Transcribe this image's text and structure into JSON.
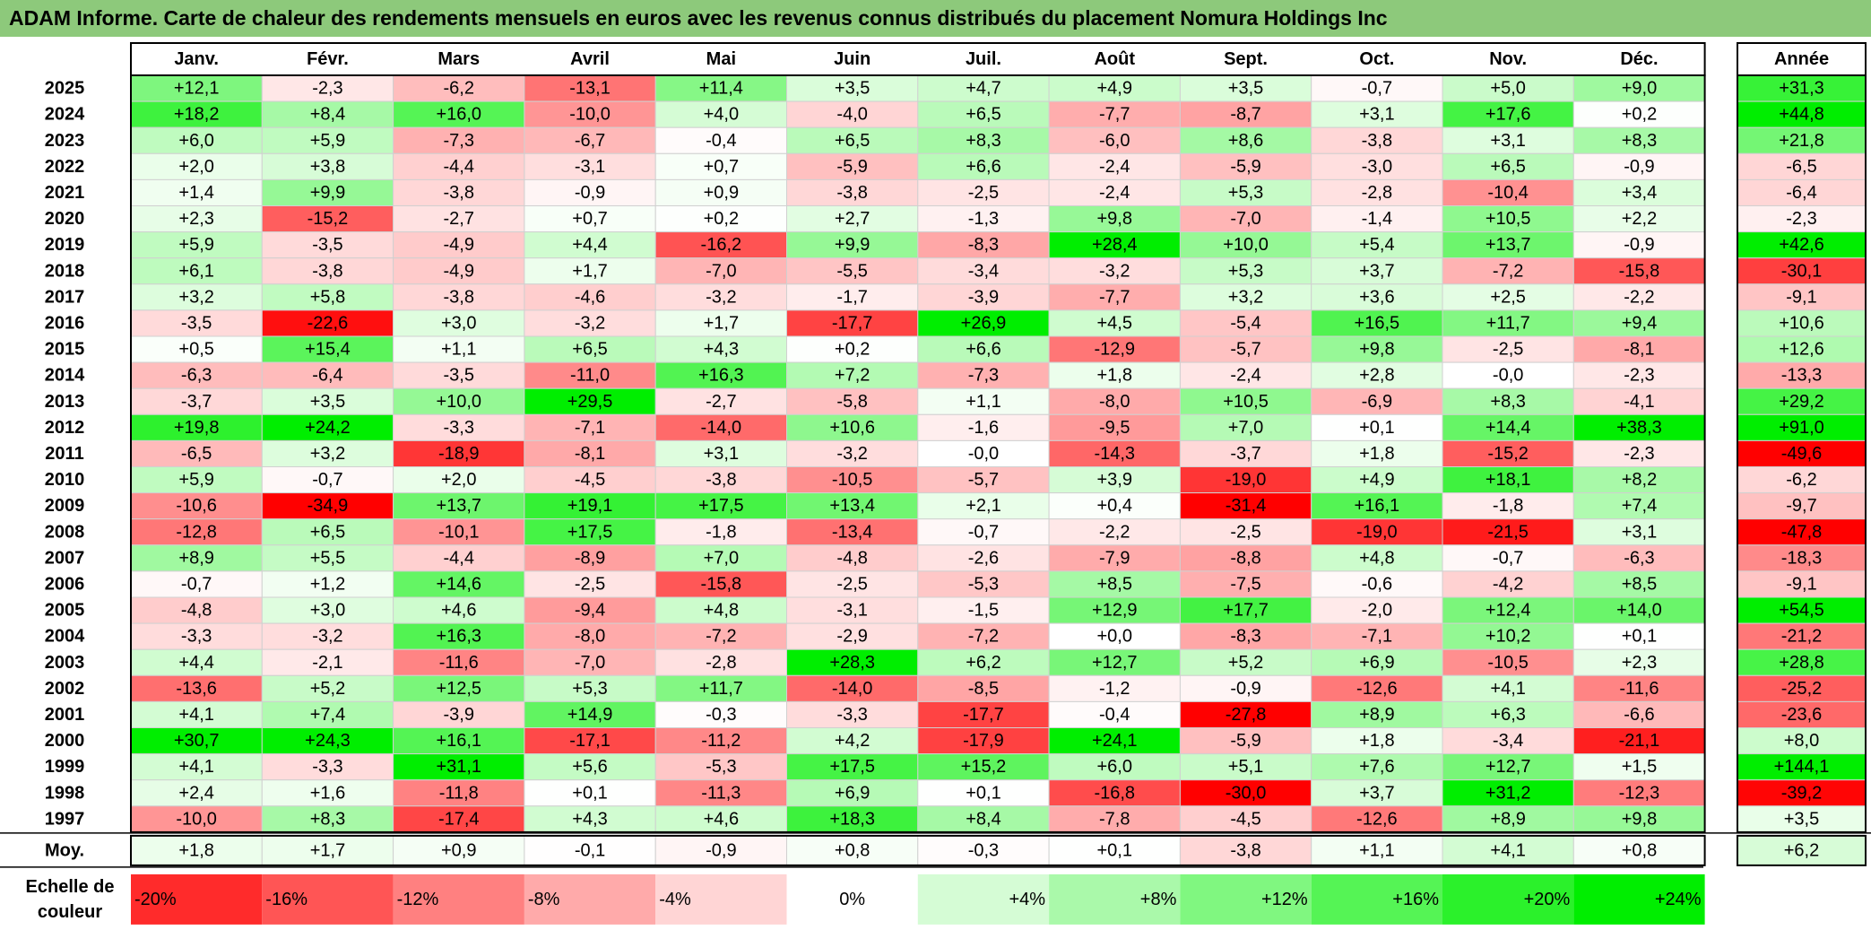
{
  "title": "ADAM Informe. Carte de chaleur des rendements mensuels en euros avec les revenus connus distribués du placement Nomura Holdings Inc",
  "chart_data": {
    "type": "heatmap",
    "columns": [
      "Janv.",
      "Févr.",
      "Mars",
      "Avril",
      "Mai",
      "Juin",
      "Juil.",
      "Août",
      "Sept.",
      "Oct.",
      "Nov.",
      "Déc."
    ],
    "year_header": "Année",
    "rows": [
      {
        "year": "2025",
        "values": [
          "+12,1",
          "-2,3",
          "-6,2",
          "-13,1",
          "+11,4",
          "+3,5",
          "+4,7",
          "+4,9",
          "+3,5",
          "-0,7",
          "+5,0",
          "+9,0"
        ],
        "annual": "+31,3"
      },
      {
        "year": "2024",
        "values": [
          "+18,2",
          "+8,4",
          "+16,0",
          "-10,0",
          "+4,0",
          "-4,0",
          "+6,5",
          "-7,7",
          "-8,7",
          "+3,1",
          "+17,6",
          "+0,2"
        ],
        "annual": "+44,8"
      },
      {
        "year": "2023",
        "values": [
          "+6,0",
          "+5,9",
          "-7,3",
          "-6,7",
          "-0,4",
          "+6,5",
          "+8,3",
          "-6,0",
          "+8,6",
          "-3,8",
          "+3,1",
          "+8,3"
        ],
        "annual": "+21,8"
      },
      {
        "year": "2022",
        "values": [
          "+2,0",
          "+3,8",
          "-4,4",
          "-3,1",
          "+0,7",
          "-5,9",
          "+6,6",
          "-2,4",
          "-5,9",
          "-3,0",
          "+6,5",
          "-0,9"
        ],
        "annual": "-6,5"
      },
      {
        "year": "2021",
        "values": [
          "+1,4",
          "+9,9",
          "-3,8",
          "-0,9",
          "+0,9",
          "-3,8",
          "-2,5",
          "-2,4",
          "+5,3",
          "-2,8",
          "-10,4",
          "+3,4"
        ],
        "annual": "-6,4"
      },
      {
        "year": "2020",
        "values": [
          "+2,3",
          "-15,2",
          "-2,7",
          "+0,7",
          "+0,2",
          "+2,7",
          "-1,3",
          "+9,8",
          "-7,0",
          "-1,4",
          "+10,5",
          "+2,2"
        ],
        "annual": "-2,3"
      },
      {
        "year": "2019",
        "values": [
          "+5,9",
          "-3,5",
          "-4,9",
          "+4,4",
          "-16,2",
          "+9,9",
          "-8,3",
          "+28,4",
          "+10,0",
          "+5,4",
          "+13,7",
          "-0,9"
        ],
        "annual": "+42,6"
      },
      {
        "year": "2018",
        "values": [
          "+6,1",
          "-3,8",
          "-4,9",
          "+1,7",
          "-7,0",
          "-5,5",
          "-3,4",
          "-3,2",
          "+5,3",
          "+3,7",
          "-7,2",
          "-15,8"
        ],
        "annual": "-30,1"
      },
      {
        "year": "2017",
        "values": [
          "+3,2",
          "+5,8",
          "-3,8",
          "-4,6",
          "-3,2",
          "-1,7",
          "-3,9",
          "-7,7",
          "+3,2",
          "+3,6",
          "+2,5",
          "-2,2"
        ],
        "annual": "-9,1"
      },
      {
        "year": "2016",
        "values": [
          "-3,5",
          "-22,6",
          "+3,0",
          "-3,2",
          "+1,7",
          "-17,7",
          "+26,9",
          "+4,5",
          "-5,4",
          "+16,5",
          "+11,7",
          "+9,4"
        ],
        "annual": "+10,6"
      },
      {
        "year": "2015",
        "values": [
          "+0,5",
          "+15,4",
          "+1,1",
          "+6,5",
          "+4,3",
          "+0,2",
          "+6,6",
          "-12,9",
          "-5,7",
          "+9,8",
          "-2,5",
          "-8,1"
        ],
        "annual": "+12,6"
      },
      {
        "year": "2014",
        "values": [
          "-6,3",
          "-6,4",
          "-3,5",
          "-11,0",
          "+16,3",
          "+7,2",
          "-7,3",
          "+1,8",
          "-2,4",
          "+2,8",
          "-0,0",
          "-2,3"
        ],
        "annual": "-13,3"
      },
      {
        "year": "2013",
        "values": [
          "-3,7",
          "+3,5",
          "+10,0",
          "+29,5",
          "-2,7",
          "-5,8",
          "+1,1",
          "-8,0",
          "+10,5",
          "-6,9",
          "+8,3",
          "-4,1"
        ],
        "annual": "+29,2"
      },
      {
        "year": "2012",
        "values": [
          "+19,8",
          "+24,2",
          "-3,3",
          "-7,1",
          "-14,0",
          "+10,6",
          "-1,6",
          "-9,5",
          "+7,0",
          "+0,1",
          "+14,4",
          "+38,3"
        ],
        "annual": "+91,0"
      },
      {
        "year": "2011",
        "values": [
          "-6,5",
          "+3,2",
          "-18,9",
          "-8,1",
          "+3,1",
          "-3,2",
          "-0,0",
          "-14,3",
          "-3,7",
          "+1,8",
          "-15,2",
          "-2,3"
        ],
        "annual": "-49,6"
      },
      {
        "year": "2010",
        "values": [
          "+5,9",
          "-0,7",
          "+2,0",
          "-4,5",
          "-3,8",
          "-10,5",
          "-5,7",
          "+3,9",
          "-19,0",
          "+4,9",
          "+18,1",
          "+8,2"
        ],
        "annual": "-6,2"
      },
      {
        "year": "2009",
        "values": [
          "-10,6",
          "-34,9",
          "+13,7",
          "+19,1",
          "+17,5",
          "+13,4",
          "+2,1",
          "+0,4",
          "-31,4",
          "+16,1",
          "-1,8",
          "+7,4"
        ],
        "annual": "-9,7"
      },
      {
        "year": "2008",
        "values": [
          "-12,8",
          "+6,5",
          "-10,1",
          "+17,5",
          "-1,8",
          "-13,4",
          "-0,7",
          "-2,2",
          "-2,5",
          "-19,0",
          "-21,5",
          "+3,1"
        ],
        "annual": "-47,8"
      },
      {
        "year": "2007",
        "values": [
          "+8,9",
          "+5,5",
          "-4,4",
          "-8,9",
          "+7,0",
          "-4,8",
          "-2,6",
          "-7,9",
          "-8,8",
          "+4,8",
          "-0,7",
          "-6,3"
        ],
        "annual": "-18,3"
      },
      {
        "year": "2006",
        "values": [
          "-0,7",
          "+1,2",
          "+14,6",
          "-2,5",
          "-15,8",
          "-2,5",
          "-5,3",
          "+8,5",
          "-7,5",
          "-0,6",
          "-4,2",
          "+8,5"
        ],
        "annual": "-9,1"
      },
      {
        "year": "2005",
        "values": [
          "-4,8",
          "+3,0",
          "+4,6",
          "-9,4",
          "+4,8",
          "-3,1",
          "-1,5",
          "+12,9",
          "+17,7",
          "-2,0",
          "+12,4",
          "+14,0"
        ],
        "annual": "+54,5"
      },
      {
        "year": "2004",
        "values": [
          "-3,3",
          "-3,2",
          "+16,3",
          "-8,0",
          "-7,2",
          "-2,9",
          "-7,2",
          "+0,0",
          "-8,3",
          "-7,1",
          "+10,2",
          "+0,1"
        ],
        "annual": "-21,2"
      },
      {
        "year": "2003",
        "values": [
          "+4,4",
          "-2,1",
          "-11,6",
          "-7,0",
          "-2,8",
          "+28,3",
          "+6,2",
          "+12,7",
          "+5,2",
          "+6,9",
          "-10,5",
          "+2,3"
        ],
        "annual": "+28,8"
      },
      {
        "year": "2002",
        "values": [
          "-13,6",
          "+5,2",
          "+12,5",
          "+5,3",
          "+11,7",
          "-14,0",
          "-8,5",
          "-1,2",
          "-0,9",
          "-12,6",
          "+4,1",
          "-11,6"
        ],
        "annual": "-25,2"
      },
      {
        "year": "2001",
        "values": [
          "+4,1",
          "+7,4",
          "-3,9",
          "+14,9",
          "-0,3",
          "-3,3",
          "-17,7",
          "-0,4",
          "-27,8",
          "+8,9",
          "+6,3",
          "-6,6"
        ],
        "annual": "-23,6"
      },
      {
        "year": "2000",
        "values": [
          "+30,7",
          "+24,3",
          "+16,1",
          "-17,1",
          "-11,2",
          "+4,2",
          "-17,9",
          "+24,1",
          "-5,9",
          "+1,8",
          "-3,4",
          "-21,1"
        ],
        "annual": "+8,0"
      },
      {
        "year": "1999",
        "values": [
          "+4,1",
          "-3,3",
          "+31,1",
          "+5,6",
          "-5,3",
          "+17,5",
          "+15,2",
          "+6,0",
          "+5,1",
          "+7,6",
          "+12,7",
          "+1,5"
        ],
        "annual": "+144,1"
      },
      {
        "year": "1998",
        "values": [
          "+2,4",
          "+1,6",
          "-11,8",
          "+0,1",
          "-11,3",
          "+6,9",
          "+0,1",
          "-16,8",
          "-30,0",
          "+3,7",
          "+31,2",
          "-12,3"
        ],
        "annual": "-39,2"
      },
      {
        "year": "1997",
        "values": [
          "-10,0",
          "+8,3",
          "-17,4",
          "+4,3",
          "+4,6",
          "+18,3",
          "+8,4",
          "-7,8",
          "-4,5",
          "-12,6",
          "+8,9",
          "+9,8"
        ],
        "annual": "+3,5"
      }
    ],
    "average": {
      "label": "Moy.",
      "values": [
        "+1,8",
        "+1,7",
        "+0,9",
        "-0,1",
        "-0,9",
        "+0,8",
        "-0,3",
        "+0,1",
        "-3,8",
        "+1,1",
        "+4,1",
        "+0,8"
      ],
      "annual": "+6,2"
    },
    "scale": {
      "label_line1": "Echelle de",
      "label_line2": "couleur",
      "stops": [
        "-20%",
        "-16%",
        "-12%",
        "-8%",
        "-4%",
        "0%",
        "+4%",
        "+8%",
        "+12%",
        "+16%",
        "+20%",
        "+24%"
      ]
    },
    "colors": {
      "title_bg": "#8dc97b",
      "negative_max": "#ff0000",
      "neutral": "#ffffff",
      "positive_max": "#00ee00"
    }
  }
}
